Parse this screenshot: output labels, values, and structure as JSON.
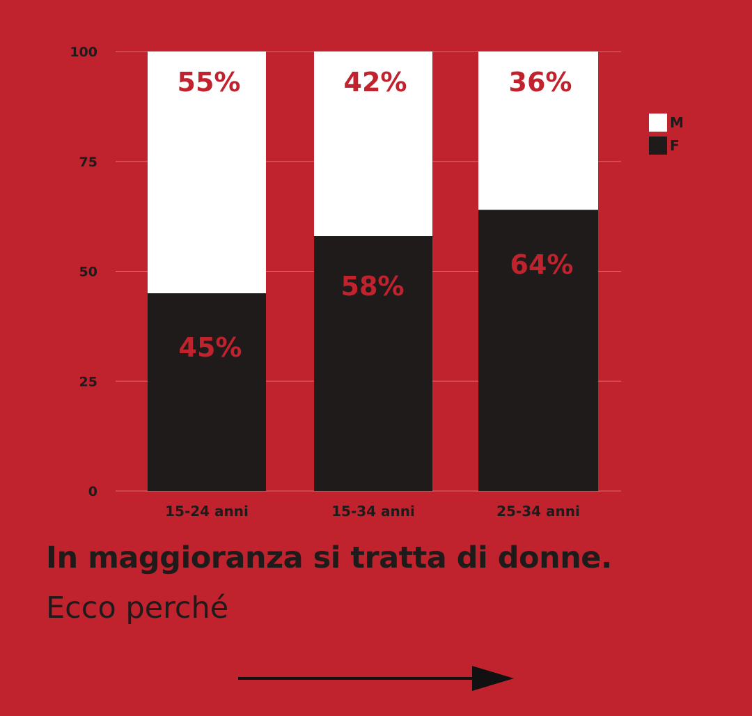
{
  "chart_data": {
    "type": "bar",
    "stacked": true,
    "categories": [
      "15-24 anni",
      "15-34 anni",
      "25-34 anni"
    ],
    "series": [
      {
        "name": "F",
        "values": [
          45,
          58,
          64
        ],
        "labels": [
          "45%",
          "58%",
          "64%"
        ],
        "color": "#1e1b1a"
      },
      {
        "name": "M",
        "values": [
          55,
          42,
          36
        ],
        "labels": [
          "55%",
          "42%",
          "36%"
        ],
        "color": "#ffffff"
      }
    ],
    "ylim": [
      0,
      100
    ],
    "yticks": [
      "0",
      "25",
      "50",
      "75",
      "100"
    ],
    "grid": true,
    "legend": {
      "position": "right",
      "entries": [
        "M",
        "F"
      ]
    },
    "label_color": "#c1232e"
  },
  "text": {
    "headline": "In maggioranza si tratta di donne.",
    "subline": "Ecco perché"
  },
  "colors": {
    "background": "#c1232e",
    "dark": "#1e1b1a",
    "light": "#ffffff",
    "grid": "#e06a72"
  },
  "icons": {
    "next": "arrow-right-icon"
  }
}
